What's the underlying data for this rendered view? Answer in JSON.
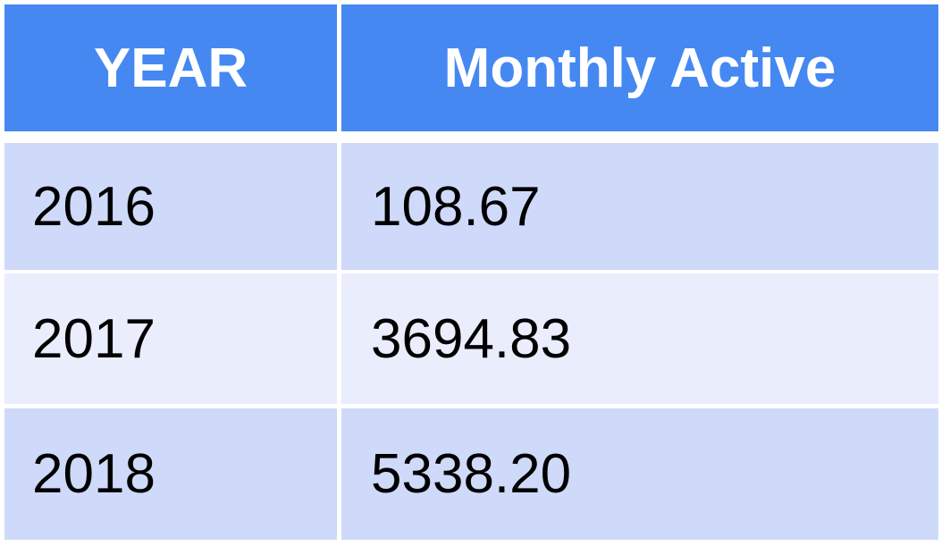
{
  "chart_data": {
    "type": "table",
    "columns": [
      "YEAR",
      "Monthly Active"
    ],
    "rows": [
      [
        "2016",
        "108.67"
      ],
      [
        "2017",
        "3694.83"
      ],
      [
        "2018",
        "5338.20"
      ]
    ]
  },
  "colors": {
    "header_bg": "#4588f2",
    "header_text": "#ffffff",
    "row_odd_bg": "#cfdafa",
    "row_even_bg": "#e9edfc",
    "grid_line": "#ffffff"
  }
}
